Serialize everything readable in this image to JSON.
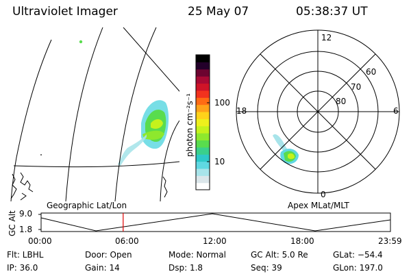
{
  "header": {
    "instrument": "Ultraviolet Imager",
    "date": "25 May 07",
    "time": "05:38:37 UT"
  },
  "colorbar": {
    "label": "photon cm⁻²s⁻¹",
    "ticks": [
      "100",
      "10"
    ],
    "scale": "log",
    "colors": [
      "#ffffff",
      "#dbe6ea",
      "#a8e4ea",
      "#5fd8e2",
      "#2ec9c9",
      "#3ad08c",
      "#59dc4e",
      "#8ee82d",
      "#c5f21c",
      "#eef01c",
      "#ffd21a",
      "#ffa21a",
      "#ff6b14",
      "#f2321e",
      "#cf1428",
      "#a80a34",
      "#6c0430",
      "#23002a",
      "#000000"
    ]
  },
  "geo_panel": {
    "label": "Geographic Lat/Lon"
  },
  "polar_panel": {
    "label": "Apex MLat/MLT",
    "mlt_labels": {
      "top": "12",
      "left": "18",
      "right": "6",
      "bottom": "0"
    },
    "lat_labels": [
      "60",
      "70",
      "80"
    ]
  },
  "altitude_plot": {
    "ylabel": "GC Alt",
    "yticks": [
      "9.0",
      "1.8"
    ],
    "xticks": [
      "00:00",
      "06:00",
      "12:00",
      "18:00",
      "23:59"
    ],
    "current_time_hours": 5.64,
    "marker_color": "#e00000"
  },
  "footer": {
    "flt": "Flt: LBHL",
    "ip": "IP: 36.0",
    "door": "Door: Open",
    "gain": "Gain: 14",
    "mode": "Mode: Normal",
    "dsp": "Dsp:    1.8",
    "gcalt": "GC Alt: 5.0 Re",
    "seq": "Seq: 39",
    "glat": "GLat: −54.4",
    "glon": "GLon: 197.0"
  }
}
